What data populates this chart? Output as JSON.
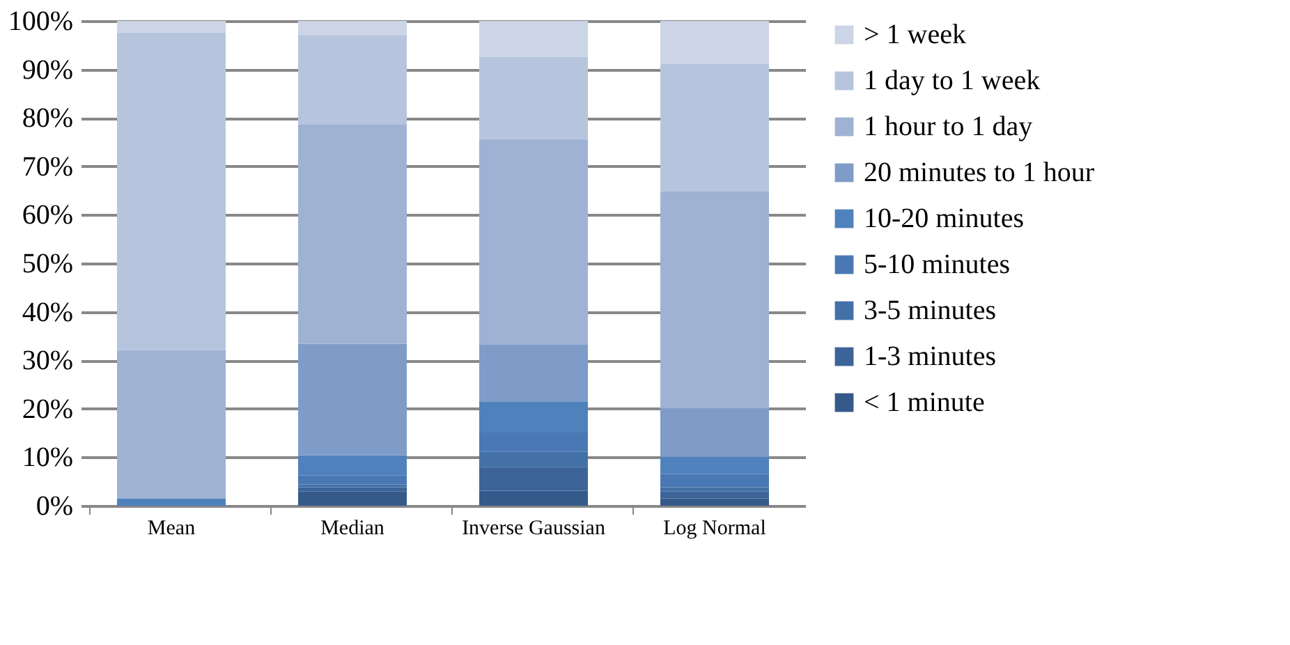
{
  "chart_data": {
    "type": "bar",
    "stacked": true,
    "categories": [
      "Mean",
      "Median",
      "Inverse Gaussian",
      "Log Normal"
    ],
    "series": [
      {
        "name": "< 1 minute",
        "color": "#355a8a",
        "values": [
          0,
          2.9,
          3.1,
          1.5
        ]
      },
      {
        "name": "1-3 minutes",
        "color": "#3c6499",
        "values": [
          0,
          0.9,
          4.9,
          1.4
        ]
      },
      {
        "name": "3-5 minutes",
        "color": "#4470a8",
        "values": [
          0,
          0.6,
          3.1,
          0.9
        ]
      },
      {
        "name": "5-10 minutes",
        "color": "#4a78b4",
        "values": [
          0,
          1.8,
          4.0,
          2.7
        ]
      },
      {
        "name": "10-20 minutes",
        "color": "#4f81bd",
        "values": [
          1.5,
          4.2,
          6.3,
          3.6
        ]
      },
      {
        "name": "20 minutes to 1 hour",
        "color": "#7f9cc8",
        "values": [
          0,
          23.0,
          11.8,
          10.0
        ]
      },
      {
        "name": "1 hour to 1 day",
        "color": "#9fb2d4",
        "values": [
          30.6,
          45.3,
          42.4,
          44.7
        ]
      },
      {
        "name": "1 day to 1 week",
        "color": "#b6c4de",
        "values": [
          65.5,
          18.4,
          17.0,
          26.3
        ]
      },
      {
        "name": "> 1 week",
        "color": "#ccd5e6",
        "values": [
          2.4,
          2.9,
          7.4,
          8.9
        ]
      }
    ],
    "ylim": [
      0,
      100
    ],
    "yticks": [
      {
        "value": 0,
        "label": "0%"
      },
      {
        "value": 10,
        "label": "10%"
      },
      {
        "value": 20,
        "label": "20%"
      },
      {
        "value": 30,
        "label": "30%"
      },
      {
        "value": 40,
        "label": "40%"
      },
      {
        "value": 50,
        "label": "50%"
      },
      {
        "value": 60,
        "label": "60%"
      },
      {
        "value": 70,
        "label": "70%"
      },
      {
        "value": 80,
        "label": "80%"
      },
      {
        "value": 90,
        "label": "90%"
      },
      {
        "value": 100,
        "label": "100%"
      }
    ],
    "grid": "y",
    "legend": "right"
  }
}
